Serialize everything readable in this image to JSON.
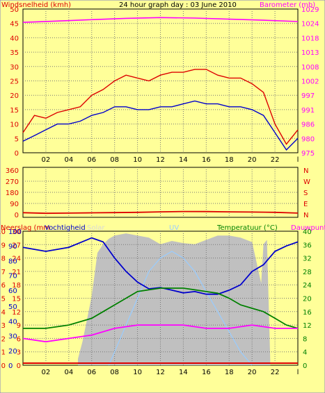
{
  "chart_data": [
    {
      "type": "line",
      "title": "24 hour graph day : 03 June 2010",
      "left_axis_label": "Windsnelheid (kmh)",
      "right_axis_label": "Barometer (mb)",
      "left_ticks": [
        0,
        5,
        10,
        15,
        20,
        25,
        30,
        35,
        40,
        45,
        50
      ],
      "right_ticks": [
        975,
        980,
        986,
        991,
        997,
        1002,
        1008,
        1013,
        1018,
        1024,
        1029
      ],
      "x_ticks": [
        "02",
        "04",
        "06",
        "08",
        "10",
        "12",
        "14",
        "16",
        "18",
        "20",
        "22",
        "l"
      ],
      "ylim_left": [
        0,
        50
      ],
      "ylim_right": [
        975,
        1029
      ],
      "colors": {
        "wind": "#0000cc",
        "gust": "#dd0000",
        "barometer": "#ff00ff"
      },
      "series": [
        {
          "color": "#ff00ff",
          "x": [
            0,
            3,
            6,
            9,
            12,
            15,
            18,
            21,
            24
          ],
          "values": [
            1024,
            1024.5,
            1025,
            1025.5,
            1025.8,
            1025.6,
            1025.2,
            1024.8,
            1024.3
          ]
        },
        {
          "color": "#0000cc",
          "x": [
            0,
            1,
            2,
            3,
            4,
            5,
            6,
            7,
            8,
            9,
            10,
            11,
            12,
            13,
            14,
            15,
            16,
            17,
            18,
            19,
            20,
            21,
            22,
            23,
            24
          ],
          "values": [
            4,
            6,
            8,
            10,
            10,
            11,
            13,
            14,
            16,
            16,
            15,
            15,
            16,
            16,
            17,
            18,
            17,
            17,
            16,
            16,
            15,
            13,
            7,
            1,
            5
          ]
        },
        {
          "color": "#dd0000",
          "x": [
            0,
            1,
            2,
            3,
            4,
            5,
            6,
            7,
            8,
            9,
            10,
            11,
            12,
            13,
            14,
            15,
            16,
            17,
            18,
            19,
            20,
            21,
            22,
            23,
            24
          ],
          "values": [
            7,
            13,
            12,
            14,
            15,
            16,
            20,
            22,
            25,
            27,
            26,
            25,
            27,
            28,
            28,
            29,
            29,
            27,
            26,
            26,
            24,
            21,
            10,
            3,
            8
          ]
        }
      ]
    },
    {
      "type": "line",
      "left_ticks": [
        0,
        90,
        180,
        270,
        360
      ],
      "right_ticks": [
        "N",
        "W",
        "S",
        "E",
        "N"
      ],
      "ylim": [
        0,
        360
      ],
      "colors": {
        "direction": "#dd0000"
      },
      "series": [
        {
          "color": "#dd0000",
          "x": [
            0,
            2,
            4,
            6,
            8,
            10,
            12,
            14,
            16,
            18,
            20,
            22,
            24
          ],
          "values": [
            15,
            10,
            12,
            14,
            16,
            18,
            22,
            25,
            24,
            22,
            20,
            18,
            12
          ]
        }
      ]
    },
    {
      "type": "line",
      "labels": {
        "rain": "Neerslag (mm",
        "humidity": "Vochtigheid",
        "solar": "Solar",
        "uv": "UV",
        "temperature": "Temperatuur (°C)",
        "dewpoint": "Dauwpunt"
      },
      "rain_ticks": [
        0,
        1,
        2,
        3,
        4,
        5,
        6,
        7,
        8,
        9,
        10
      ],
      "humidity_ticks": [
        0,
        20,
        30,
        40,
        50,
        60,
        70,
        80,
        90,
        100
      ],
      "humidity_tick_values": [
        0,
        11,
        22,
        33,
        44,
        56,
        67,
        78,
        89,
        100
      ],
      "left2_ticks": [
        0,
        3,
        6,
        9,
        12,
        15,
        18,
        21,
        24,
        27,
        30
      ],
      "right_ticks": [
        0,
        4,
        8,
        12,
        16,
        20,
        24,
        28,
        32,
        36,
        40
      ],
      "ylim_humidity": [
        0,
        100
      ],
      "ylim_temperature": [
        0,
        40
      ],
      "colors": {
        "humidity": "#0000cc",
        "temperature": "#008000",
        "dewpoint": "#ff00ff",
        "solar": "#c0c0c0",
        "uv": "#99ccff",
        "rain": "#dd0000"
      },
      "series": [
        {
          "color": "#0000cc",
          "x": [
            0,
            2,
            4,
            6,
            7,
            8,
            9,
            10,
            11,
            12,
            13,
            14,
            15,
            16,
            17,
            18,
            19,
            20,
            21,
            22,
            23,
            24
          ],
          "values": [
            88,
            85,
            88,
            95,
            92,
            80,
            70,
            62,
            57,
            58,
            56,
            54,
            55,
            53,
            53,
            56,
            60,
            70,
            75,
            85,
            89,
            92
          ]
        },
        {
          "color": "#008000",
          "x": [
            0,
            2,
            4,
            6,
            7,
            8,
            9,
            10,
            11,
            12,
            13,
            14,
            15,
            16,
            17,
            18,
            19,
            20,
            21,
            22,
            23,
            24
          ],
          "values": [
            11,
            11,
            12,
            14,
            16,
            18,
            20,
            22,
            22.5,
            23,
            23,
            23,
            22.5,
            22,
            21.5,
            20,
            18,
            17,
            16,
            14,
            12,
            11
          ]
        },
        {
          "color": "#ff00ff",
          "x": [
            0,
            2,
            4,
            6,
            8,
            10,
            12,
            14,
            16,
            18,
            20,
            22,
            24
          ],
          "values": [
            8,
            7,
            8,
            9,
            11,
            12,
            12,
            12,
            11,
            11,
            12,
            11,
            11
          ]
        },
        {
          "color": "#c0c0c0",
          "x": [
            4.8,
            5.2,
            6,
            6.5,
            7,
            7.5,
            8,
            9,
            10,
            11,
            12,
            13,
            14,
            15,
            16,
            17,
            18,
            19,
            20,
            20.8,
            21,
            21.3,
            21.6
          ],
          "values": [
            30,
            110,
            320,
            520,
            560,
            585,
            600,
            610,
            600,
            590,
            560,
            575,
            565,
            560,
            580,
            600,
            600,
            590,
            570,
            380,
            560,
            580,
            0
          ]
        },
        {
          "color": "#99ccff",
          "x": [
            7.5,
            8,
            9,
            10,
            11,
            12,
            13,
            14,
            15,
            16,
            17,
            18,
            19,
            20
          ],
          "values": [
            0,
            1,
            3,
            5,
            7,
            8,
            8.5,
            8,
            7,
            5.5,
            4,
            2.5,
            1,
            0
          ]
        },
        {
          "color": "#dd0000",
          "x": [
            0,
            24
          ],
          "values": [
            0.1,
            0.1
          ]
        }
      ]
    }
  ]
}
